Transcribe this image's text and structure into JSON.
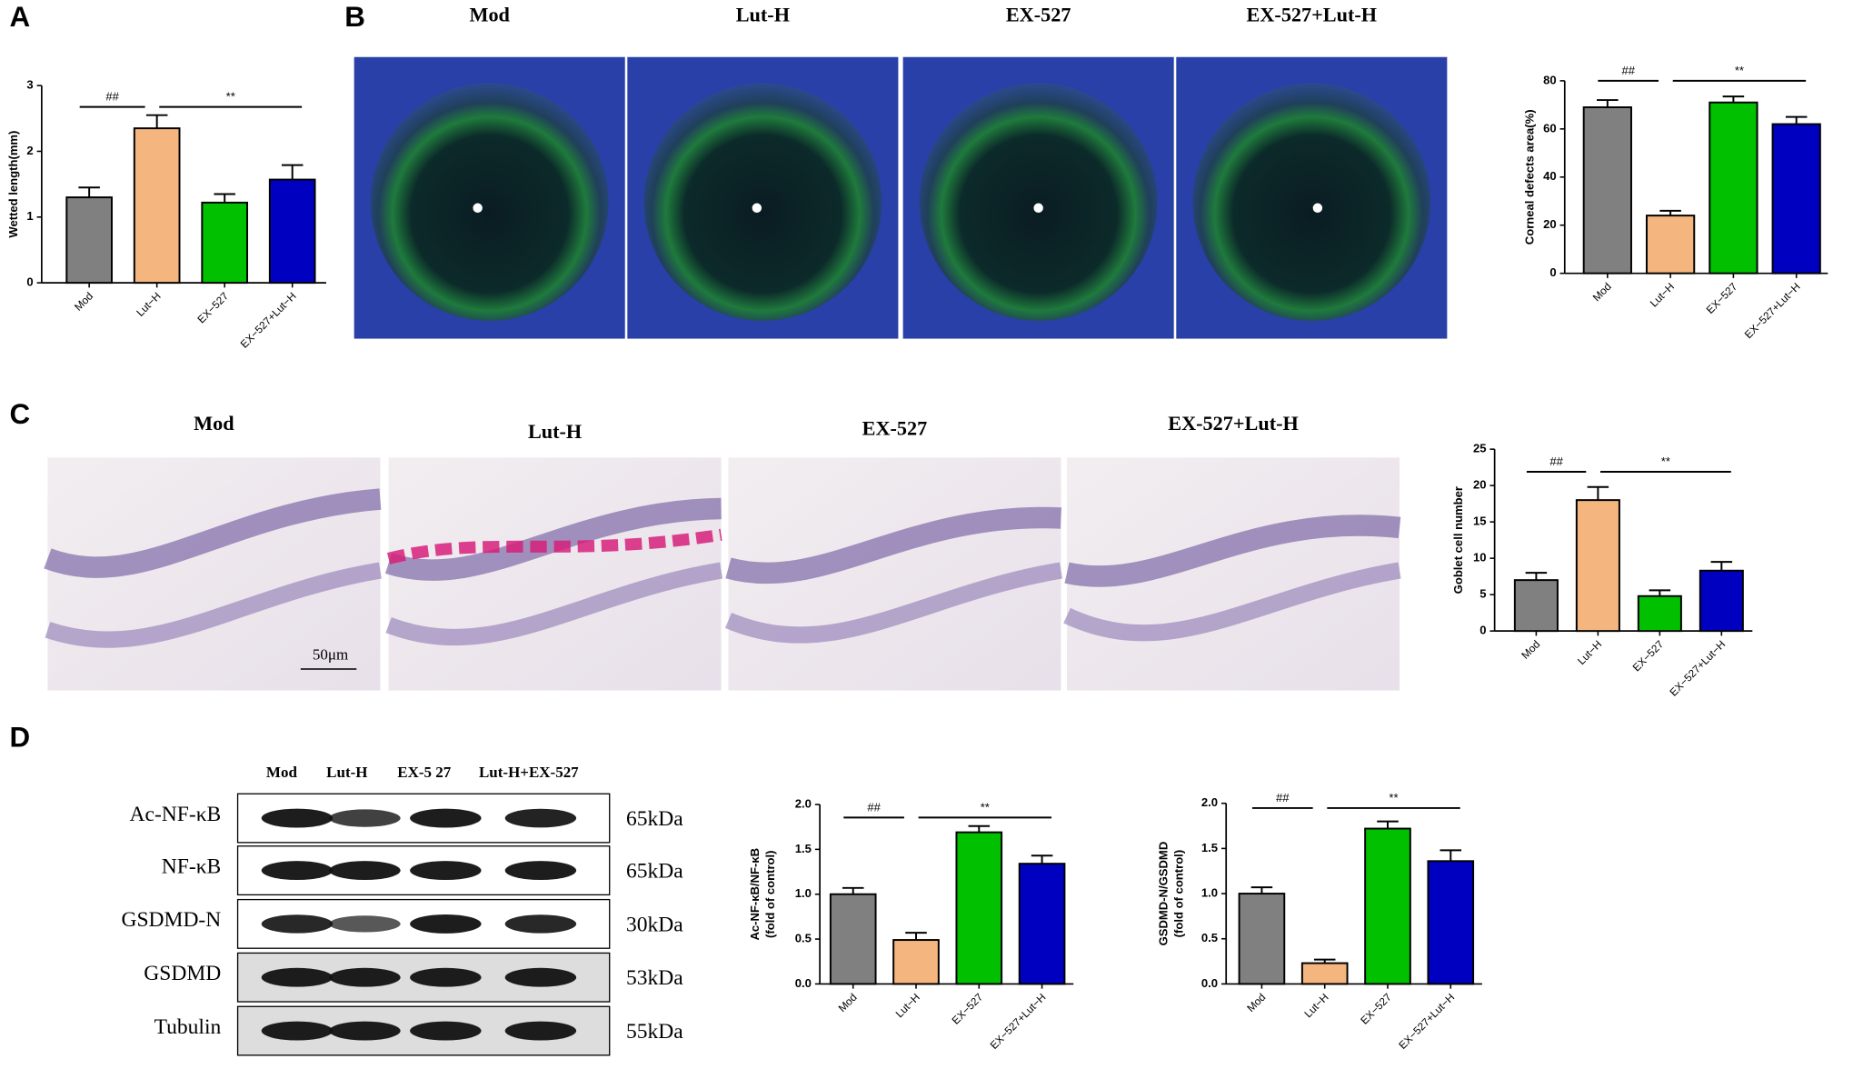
{
  "panels": [
    "A",
    "B",
    "C",
    "D"
  ],
  "panel_b": {
    "headers": [
      "Mod",
      "Lut-H",
      "EX-527",
      "EX-527+Lut-H"
    ]
  },
  "panel_c": {
    "headers": [
      "Mod",
      "Lut-H",
      "EX-527",
      "EX-527+Lut-H"
    ],
    "scale_bar": "50μm"
  },
  "panel_d": {
    "lanes": [
      "Mod",
      "Lut-H",
      "EX-5 27",
      "Lut-H+EX-527"
    ],
    "rows": [
      {
        "name": "Ac-NF-κB",
        "size": "65kDa"
      },
      {
        "name": "NF-κB",
        "size": "65kDa"
      },
      {
        "name": "GSDMD-N",
        "size": "30kDa"
      },
      {
        "name": "GSDMD",
        "size": "53kDa"
      },
      {
        "name": "Tubulin",
        "size": "55kDa"
      }
    ]
  },
  "chart_data": [
    {
      "type": "bar",
      "ylabel": [
        "Wetted length(mm)"
      ],
      "categories": [
        "Mod",
        "Lut−H",
        "EX−527",
        "EX−527+Lut−H"
      ],
      "values": [
        1.3,
        2.35,
        1.22,
        1.57
      ],
      "errors": [
        0.15,
        0.2,
        0.13,
        0.22
      ],
      "colors": [
        "#808080",
        "#f4b57f",
        "#00c000",
        "#0000c0"
      ],
      "ylim": [
        0,
        3
      ],
      "yticks": [
        0,
        1,
        2,
        3
      ],
      "annotations": [
        "##",
        "**"
      ]
    },
    {
      "type": "bar",
      "ylabel": [
        "Corneal defects area(%)"
      ],
      "categories": [
        "Mod",
        "Lut−H",
        "EX−527",
        "EX−527+Lut−H"
      ],
      "values": [
        69,
        24,
        71,
        62
      ],
      "errors": [
        3,
        2,
        2.5,
        3
      ],
      "colors": [
        "#808080",
        "#f4b57f",
        "#00c000",
        "#0000c0"
      ],
      "ylim": [
        0,
        80
      ],
      "yticks": [
        0,
        20,
        40,
        60,
        80
      ],
      "annotations": [
        "##",
        "**"
      ]
    },
    {
      "type": "bar",
      "ylabel": [
        "Goblet cell number"
      ],
      "categories": [
        "Mod",
        "Lut−H",
        "EX−527",
        "EX−527+Lut−H"
      ],
      "values": [
        7,
        18,
        4.8,
        8.3
      ],
      "errors": [
        1,
        1.8,
        0.8,
        1.2
      ],
      "colors": [
        "#808080",
        "#f4b57f",
        "#00c000",
        "#0000c0"
      ],
      "ylim": [
        0,
        25
      ],
      "yticks": [
        0,
        5,
        10,
        15,
        20,
        25
      ],
      "annotations": [
        "##",
        "**"
      ]
    },
    {
      "type": "bar",
      "ylabel": [
        "Ac-NF-κB/NF-κB",
        "(fold of control)"
      ],
      "categories": [
        "Mod",
        "Lut−H",
        "EX−527",
        "EX−527+Lut−H"
      ],
      "values": [
        1.0,
        0.49,
        1.69,
        1.34
      ],
      "errors": [
        0.07,
        0.08,
        0.07,
        0.09
      ],
      "colors": [
        "#808080",
        "#f4b57f",
        "#00c000",
        "#0000c0"
      ],
      "ylim": [
        0,
        2
      ],
      "yticks": [
        {
          "value": 0,
          "label": "0.0"
        },
        {
          "value": 0.5,
          "label": "0.5"
        },
        {
          "value": 1,
          "label": "1.0"
        },
        {
          "value": 1.5,
          "label": "1.5"
        },
        {
          "value": 2,
          "label": "2.0"
        }
      ],
      "annotations": [
        "##",
        "**"
      ]
    },
    {
      "type": "bar",
      "ylabel": [
        "GSDMD-N/GSDMD",
        "(fold of control)"
      ],
      "categories": [
        "Mod",
        "Lut−H",
        "EX−527",
        "EX−527+Lut−H"
      ],
      "values": [
        1.0,
        0.23,
        1.72,
        1.36
      ],
      "errors": [
        0.07,
        0.04,
        0.08,
        0.12
      ],
      "colors": [
        "#808080",
        "#f4b57f",
        "#00c000",
        "#0000c0"
      ],
      "ylim": [
        0,
        2
      ],
      "yticks": [
        {
          "value": 0,
          "label": "0.0"
        },
        {
          "value": 0.5,
          "label": "0.5"
        },
        {
          "value": 1,
          "label": "1.0"
        },
        {
          "value": 1.5,
          "label": "1.5"
        },
        {
          "value": 2,
          "label": "2.0"
        }
      ],
      "annotations": [
        "##",
        "**"
      ]
    }
  ]
}
